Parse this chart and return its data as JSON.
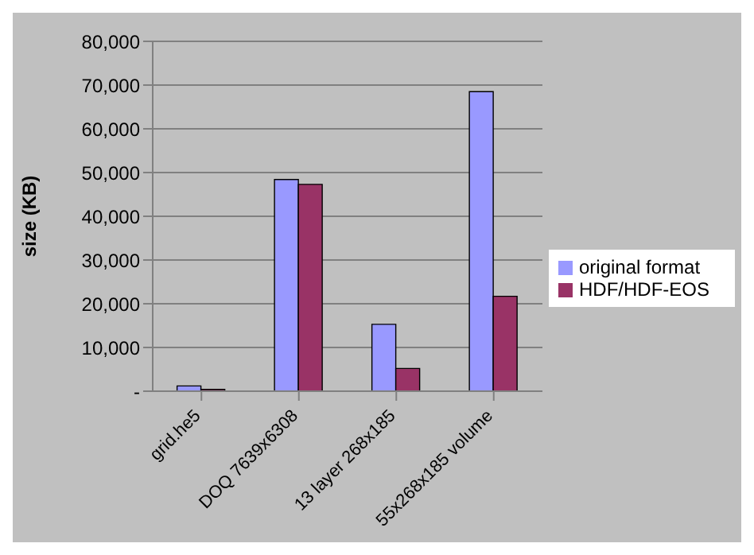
{
  "chart_data": {
    "type": "bar",
    "ylabel": "size (KB)",
    "categories": [
      "grid.he5",
      "DOQ 7639x6308",
      "13 layer 268x185",
      "55x268x185 volume"
    ],
    "series": [
      {
        "name": "original format",
        "color": "#9999ff",
        "values": [
          1200,
          48400,
          15300,
          68500
        ]
      },
      {
        "name": "HDF/HDF-EOS",
        "color": "#993366",
        "values": [
          400,
          47300,
          5200,
          21700
        ]
      }
    ],
    "ylim": [
      0,
      80000
    ],
    "yticks": [
      {
        "value": 0,
        "label": "-"
      },
      {
        "value": 10000,
        "label": "10,000"
      },
      {
        "value": 20000,
        "label": "20,000"
      },
      {
        "value": 30000,
        "label": "30,000"
      },
      {
        "value": 40000,
        "label": "40,000"
      },
      {
        "value": 50000,
        "label": "50,000"
      },
      {
        "value": 60000,
        "label": "60,000"
      },
      {
        "value": 70000,
        "label": "70,000"
      },
      {
        "value": 80000,
        "label": "80,000"
      }
    ],
    "grid": "y",
    "legend": "right"
  }
}
